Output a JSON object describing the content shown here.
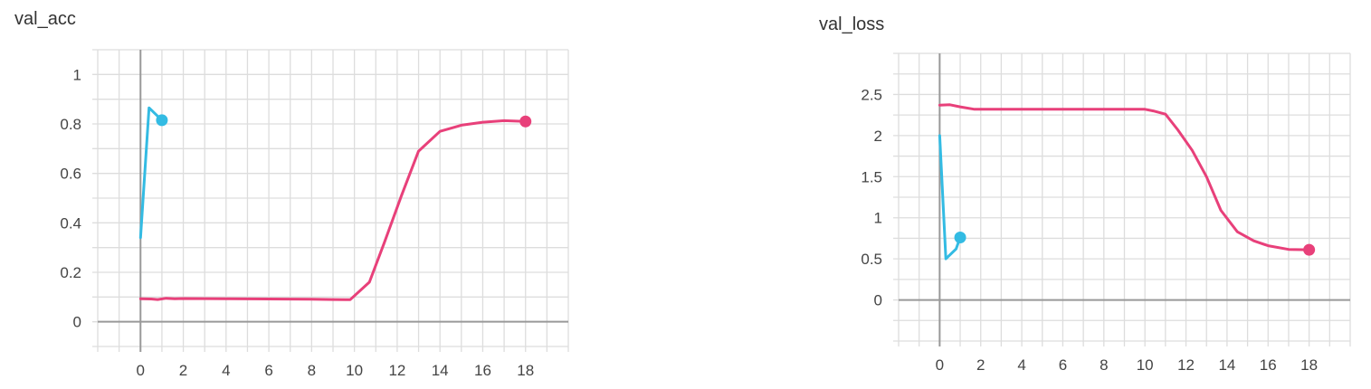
{
  "chart_data": [
    {
      "type": "line",
      "title": "val_acc",
      "xlabel": "",
      "ylabel": "",
      "xlim": [
        -2,
        20
      ],
      "ylim": [
        -0.1,
        1.1
      ],
      "x_ticks": [
        0,
        2,
        4,
        6,
        8,
        10,
        12,
        14,
        16,
        18
      ],
      "y_ticks": [
        0,
        0.2,
        0.4,
        0.6,
        0.8,
        1
      ],
      "x_tick_labels": [
        "0",
        "2",
        "4",
        "6",
        "8",
        "10",
        "12",
        "14",
        "16",
        "18"
      ],
      "y_tick_labels": [
        "0",
        "0.2",
        "0.4",
        "0.6",
        "0.8",
        "1"
      ],
      "grid": true,
      "legend": false,
      "series": [
        {
          "color": "#e8407a",
          "x": [
            0,
            0.5,
            0.8,
            1.2,
            1.6,
            2,
            4,
            6,
            8,
            9,
            9.8,
            10.7,
            11.4,
            12.2,
            13,
            14,
            15,
            16,
            17,
            18
          ],
          "y": [
            0.093,
            0.092,
            0.09,
            0.095,
            0.093,
            0.094,
            0.093,
            0.092,
            0.091,
            0.09,
            0.089,
            0.16,
            0.32,
            0.51,
            0.69,
            0.77,
            0.795,
            0.807,
            0.813,
            0.81
          ],
          "end_marker": true
        },
        {
          "color": "#33bbe3",
          "x": [
            0,
            0.4,
            1
          ],
          "y": [
            0.34,
            0.865,
            0.815
          ],
          "end_marker": true
        }
      ]
    },
    {
      "type": "line",
      "title": "val_loss",
      "xlabel": "",
      "ylabel": "",
      "xlim": [
        -2,
        20
      ],
      "ylim": [
        -0.5,
        3
      ],
      "x_ticks": [
        0,
        2,
        4,
        6,
        8,
        10,
        12,
        14,
        16,
        18
      ],
      "y_ticks": [
        0,
        0.5,
        1,
        1.5,
        2,
        2.5
      ],
      "x_tick_labels": [
        "0",
        "2",
        "4",
        "6",
        "8",
        "10",
        "12",
        "14",
        "16",
        "18"
      ],
      "y_tick_labels": [
        "0",
        "0.5",
        "1",
        "1.5",
        "2",
        "2.5"
      ],
      "grid": true,
      "legend": false,
      "series": [
        {
          "color": "#e8407a",
          "x": [
            0,
            0.5,
            1,
            1.7,
            2,
            4,
            6,
            8,
            10,
            10.4,
            11,
            11.6,
            12.3,
            13,
            13.7,
            14.5,
            15.3,
            16,
            17,
            18
          ],
          "y": [
            2.37,
            2.375,
            2.35,
            2.32,
            2.32,
            2.32,
            2.32,
            2.32,
            2.32,
            2.3,
            2.26,
            2.07,
            1.82,
            1.5,
            1.09,
            0.83,
            0.72,
            0.66,
            0.615,
            0.61
          ],
          "end_marker": true
        },
        {
          "color": "#33bbe3",
          "x": [
            0,
            0.3,
            0.8,
            1
          ],
          "y": [
            2.0,
            0.5,
            0.62,
            0.76
          ],
          "end_marker": true
        }
      ]
    }
  ]
}
